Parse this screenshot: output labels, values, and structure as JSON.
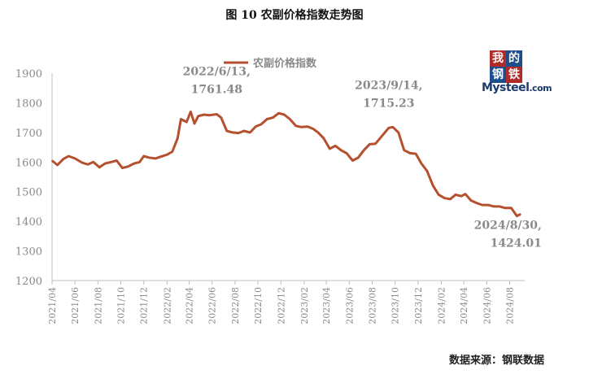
{
  "title": "图 10 农副价格指数走势图",
  "source": "数据来源：钢联数据",
  "logo": {
    "chars": [
      "我",
      "的",
      "钢",
      "铁"
    ],
    "word": "Mysteel",
    "suffix": ".com"
  },
  "colors": {
    "line": "#b5502e",
    "axis": "#bfbfbf",
    "text": "#8a8a8a"
  },
  "chart_data": {
    "type": "line",
    "title": "图 10 农副价格指数走势图",
    "xlabel": "",
    "ylabel": "",
    "ylim": [
      1200,
      1900
    ],
    "yticks": [
      1200,
      1300,
      1400,
      1500,
      1600,
      1700,
      1800,
      1900
    ],
    "xticks": [
      "2021/04",
      "2021/06",
      "2021/08",
      "2021/10",
      "2021/12",
      "2022/02",
      "2022/04",
      "2022/06",
      "2022/08",
      "2022/10",
      "2022/12",
      "2023/02",
      "2023/04",
      "2023/06",
      "2023/08",
      "2023/10",
      "2023/12",
      "2024/02",
      "2024/04",
      "2024/06",
      "2024/08"
    ],
    "legend": {
      "position": "top-center"
    },
    "series": [
      {
        "name": "农副价格指数",
        "points": [
          [
            "2021-04-01",
            1605
          ],
          [
            "2021-04-15",
            1590
          ],
          [
            "2021-05-01",
            1610
          ],
          [
            "2021-05-15",
            1620
          ],
          [
            "2021-06-01",
            1612
          ],
          [
            "2021-06-20",
            1598
          ],
          [
            "2021-07-05",
            1592
          ],
          [
            "2021-07-20",
            1600
          ],
          [
            "2021-08-05",
            1582
          ],
          [
            "2021-08-20",
            1595
          ],
          [
            "2021-09-05",
            1600
          ],
          [
            "2021-09-20",
            1605
          ],
          [
            "2021-10-05",
            1580
          ],
          [
            "2021-10-20",
            1585
          ],
          [
            "2021-11-05",
            1595
          ],
          [
            "2021-11-20",
            1600
          ],
          [
            "2021-12-01",
            1620
          ],
          [
            "2021-12-15",
            1615
          ],
          [
            "2022-01-01",
            1612
          ],
          [
            "2022-01-15",
            1618
          ],
          [
            "2022-02-01",
            1625
          ],
          [
            "2022-02-15",
            1635
          ],
          [
            "2022-03-01",
            1680
          ],
          [
            "2022-03-10",
            1745
          ],
          [
            "2022-03-25",
            1735
          ],
          [
            "2022-04-05",
            1770
          ],
          [
            "2022-04-15",
            1730
          ],
          [
            "2022-04-25",
            1755
          ],
          [
            "2022-05-10",
            1760
          ],
          [
            "2022-05-25",
            1758
          ],
          [
            "2022-06-13",
            1761.48
          ],
          [
            "2022-06-25",
            1750
          ],
          [
            "2022-07-10",
            1705
          ],
          [
            "2022-07-25",
            1700
          ],
          [
            "2022-08-10",
            1698
          ],
          [
            "2022-08-25",
            1705
          ],
          [
            "2022-09-10",
            1700
          ],
          [
            "2022-09-25",
            1720
          ],
          [
            "2022-10-10",
            1728
          ],
          [
            "2022-10-25",
            1745
          ],
          [
            "2022-11-10",
            1750
          ],
          [
            "2022-11-25",
            1765
          ],
          [
            "2022-12-10",
            1760
          ],
          [
            "2022-12-25",
            1745
          ],
          [
            "2023-01-10",
            1722
          ],
          [
            "2023-01-25",
            1718
          ],
          [
            "2023-02-10",
            1720
          ],
          [
            "2023-02-25",
            1712
          ],
          [
            "2023-03-10",
            1700
          ],
          [
            "2023-03-25",
            1680
          ],
          [
            "2023-04-10",
            1645
          ],
          [
            "2023-04-25",
            1655
          ],
          [
            "2023-05-10",
            1640
          ],
          [
            "2023-05-25",
            1630
          ],
          [
            "2023-06-10",
            1605
          ],
          [
            "2023-06-25",
            1615
          ],
          [
            "2023-07-10",
            1640
          ],
          [
            "2023-07-25",
            1660
          ],
          [
            "2023-08-10",
            1662
          ],
          [
            "2023-08-25",
            1685
          ],
          [
            "2023-09-14",
            1715.23
          ],
          [
            "2023-09-25",
            1718
          ],
          [
            "2023-10-10",
            1700
          ],
          [
            "2023-10-25",
            1640
          ],
          [
            "2023-11-10",
            1630
          ],
          [
            "2023-11-25",
            1628
          ],
          [
            "2023-12-10",
            1595
          ],
          [
            "2023-12-25",
            1570
          ],
          [
            "2024-01-10",
            1520
          ],
          [
            "2024-01-25",
            1490
          ],
          [
            "2024-02-10",
            1478
          ],
          [
            "2024-02-25",
            1475
          ],
          [
            "2024-03-10",
            1490
          ],
          [
            "2024-03-25",
            1485
          ],
          [
            "2024-04-05",
            1492
          ],
          [
            "2024-04-20",
            1470
          ],
          [
            "2024-05-05",
            1462
          ],
          [
            "2024-05-20",
            1455
          ],
          [
            "2024-06-05",
            1455
          ],
          [
            "2024-06-20",
            1450
          ],
          [
            "2024-07-05",
            1450
          ],
          [
            "2024-07-20",
            1445
          ],
          [
            "2024-08-05",
            1445
          ],
          [
            "2024-08-20",
            1418
          ],
          [
            "2024-08-30",
            1424.01
          ]
        ]
      }
    ],
    "annotations": [
      {
        "date": "2022-06-13",
        "lines": [
          "2022/6/13,",
          "1761.48"
        ]
      },
      {
        "date": "2023-09-14",
        "lines": [
          "2023/9/14,",
          "1715.23"
        ]
      },
      {
        "date": "2024-08-30",
        "lines": [
          "2024/8/30,",
          "1424.01"
        ]
      }
    ]
  }
}
